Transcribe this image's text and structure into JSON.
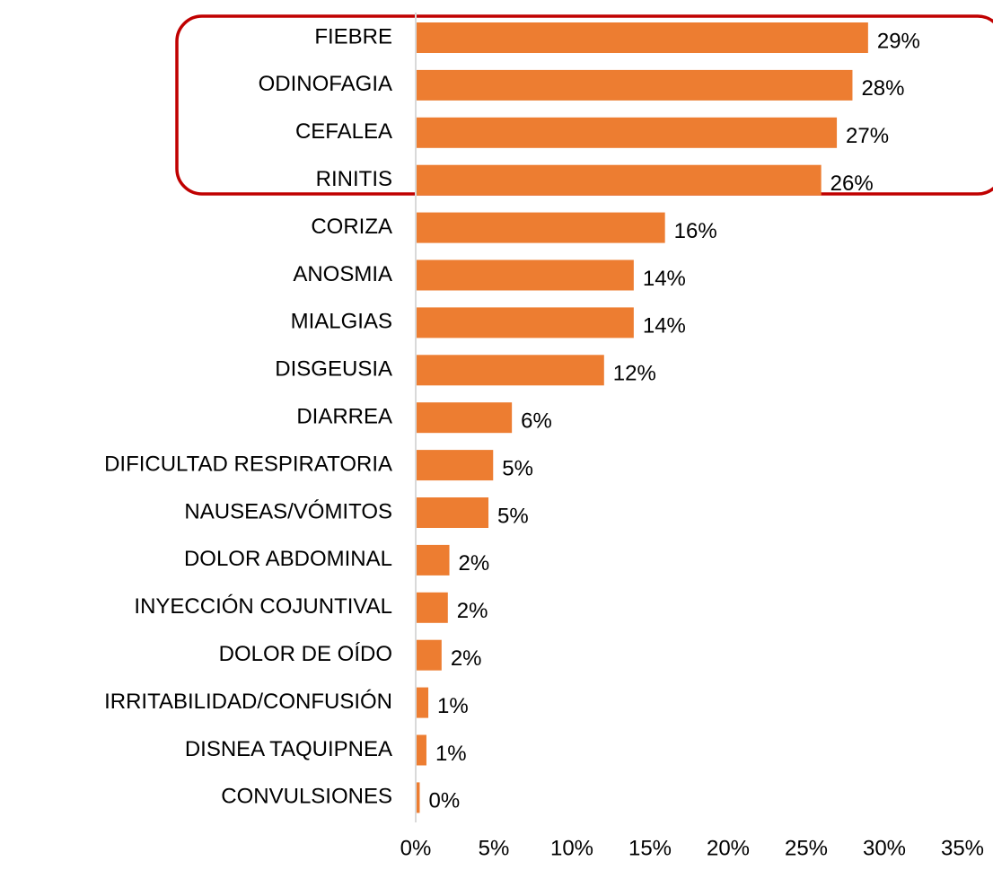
{
  "chart_data": {
    "type": "bar",
    "orientation": "horizontal",
    "color": "#ed7d31",
    "categories": [
      "FIEBRE",
      "ODINOFAGIA",
      "CEFALEA",
      "RINITIS",
      "CORIZA",
      "ANOSMIA",
      "MIALGIAS",
      "DISGEUSIA",
      "DIARREA",
      "DIFICULTAD RESPIRATORIA",
      "NAUSEAS/VÓMITOS",
      "DOLOR ABDOMINAL",
      "INYECCIÓN COJUNTIVAL",
      "DOLOR DE OÍDO",
      "IRRITABILIDAD/CONFUSIÓN",
      "DISNEA TAQUIPNEA",
      "CONVULSIONES"
    ],
    "values": [
      28.9,
      27.9,
      26.9,
      25.9,
      15.9,
      13.9,
      13.9,
      12.0,
      6.1,
      4.9,
      4.6,
      2.1,
      2.0,
      1.6,
      0.75,
      0.63,
      0.2
    ],
    "value_labels": [
      "29%",
      "28%",
      "27%",
      "26%",
      "16%",
      "14%",
      "14%",
      "12%",
      "6%",
      "5%",
      "5%",
      "2%",
      "2%",
      "2%",
      "1%",
      "1%",
      "0%"
    ],
    "xlim": [
      0,
      35
    ],
    "xticks": [
      {
        "value": 0,
        "label": "0%"
      },
      {
        "value": 5,
        "label": "5%"
      },
      {
        "value": 10,
        "label": "10%"
      },
      {
        "value": 15,
        "label": "15%"
      },
      {
        "value": 20,
        "label": "20%"
      },
      {
        "value": 25,
        "label": "25%"
      },
      {
        "value": 30,
        "label": "30%"
      },
      {
        "value": 35,
        "label": "35%"
      }
    ],
    "grid": false
  }
}
